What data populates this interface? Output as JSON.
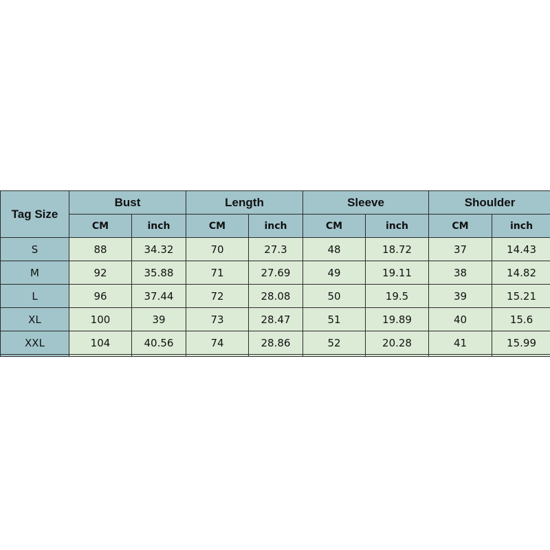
{
  "table": {
    "size_header": "Tag Size",
    "groups": [
      "Bust",
      "Length",
      "Sleeve",
      "Shoulder"
    ],
    "units": [
      "CM",
      "inch"
    ],
    "rows": [
      {
        "size": "S",
        "values": [
          "88",
          "34.32",
          "70",
          "27.3",
          "48",
          "18.72",
          "37",
          "14.43"
        ]
      },
      {
        "size": "M",
        "values": [
          "92",
          "35.88",
          "71",
          "27.69",
          "49",
          "19.11",
          "38",
          "14.82"
        ]
      },
      {
        "size": "L",
        "values": [
          "96",
          "37.44",
          "72",
          "28.08",
          "50",
          "19.5",
          "39",
          "15.21"
        ]
      },
      {
        "size": "XL",
        "values": [
          "100",
          "39",
          "73",
          "28.47",
          "51",
          "19.89",
          "40",
          "15.6"
        ]
      },
      {
        "size": "XXL",
        "values": [
          "104",
          "40.56",
          "74",
          "28.86",
          "52",
          "20.28",
          "41",
          "15.99"
        ]
      }
    ]
  },
  "colors": {
    "header": "#a2c5cc",
    "cell": "#dcebd6",
    "border": "#2a2a2a"
  }
}
